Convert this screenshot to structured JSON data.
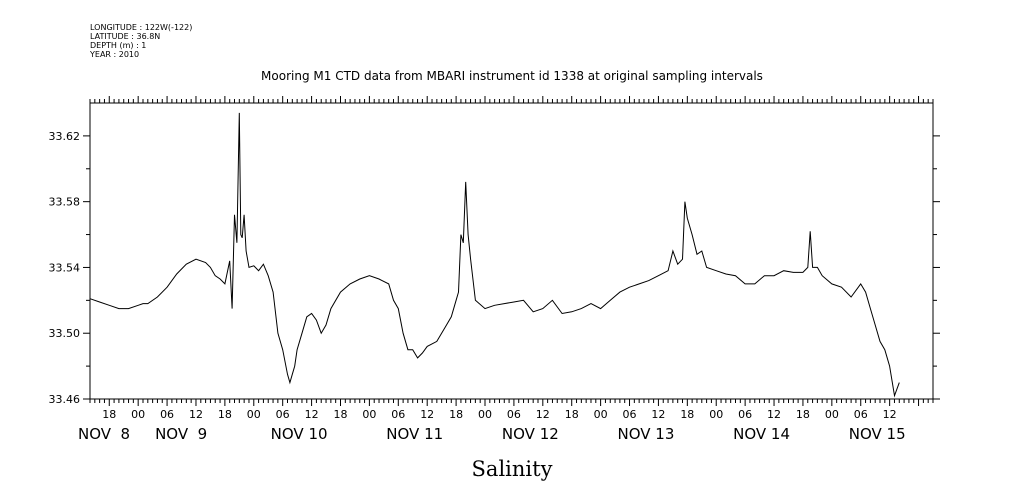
{
  "header": {
    "meta_lines": [
      "LONGITUDE : 122W(-122)",
      "LATITUDE : 36.8N",
      "DEPTH (m) : 1",
      "YEAR : 2010"
    ],
    "title": "Mooring M1 CTD data from MBARI instrument id 1338 at original sampling intervals"
  },
  "chart_data": {
    "type": "line",
    "title": "Mooring M1 CTD data from MBARI instrument id 1338 at original sampling intervals",
    "xlabel": "Salinity",
    "ylabel": "",
    "ylim": [
      33.46,
      33.64
    ],
    "yticks": [
      33.46,
      33.5,
      33.54,
      33.58,
      33.62
    ],
    "ytick_labels": [
      "33.46",
      "33.50",
      "33.54",
      "33.58",
      "33.62"
    ],
    "xlim_hours": [
      -10,
      165
    ],
    "hour_tick_labels": [
      {
        "h": -6,
        "label": "18"
      },
      {
        "h": 0,
        "label": "00"
      },
      {
        "h": 6,
        "label": "06"
      },
      {
        "h": 12,
        "label": "12"
      },
      {
        "h": 18,
        "label": "18"
      },
      {
        "h": 24,
        "label": "00"
      },
      {
        "h": 30,
        "label": "06"
      },
      {
        "h": 36,
        "label": "12"
      },
      {
        "h": 42,
        "label": "18"
      },
      {
        "h": 48,
        "label": "00"
      },
      {
        "h": 54,
        "label": "06"
      },
      {
        "h": 60,
        "label": "12"
      },
      {
        "h": 66,
        "label": "18"
      },
      {
        "h": 72,
        "label": "00"
      },
      {
        "h": 78,
        "label": "06"
      },
      {
        "h": 84,
        "label": "12"
      },
      {
        "h": 90,
        "label": "18"
      },
      {
        "h": 96,
        "label": "00"
      },
      {
        "h": 102,
        "label": "06"
      },
      {
        "h": 108,
        "label": "12"
      },
      {
        "h": 114,
        "label": "18"
      },
      {
        "h": 120,
        "label": "00"
      },
      {
        "h": 126,
        "label": "06"
      },
      {
        "h": 132,
        "label": "12"
      },
      {
        "h": 138,
        "label": "18"
      },
      {
        "h": 144,
        "label": "00"
      },
      {
        "h": 150,
        "label": "06"
      },
      {
        "h": 156,
        "label": "12"
      }
    ],
    "day_labels": [
      {
        "h": -10,
        "label": "NOV  8"
      },
      {
        "h": 6,
        "label": "NOV  9"
      },
      {
        "h": 30,
        "label": "NOV 10"
      },
      {
        "h": 54,
        "label": "NOV 11"
      },
      {
        "h": 78,
        "label": "NOV 12"
      },
      {
        "h": 102,
        "label": "NOV 13"
      },
      {
        "h": 126,
        "label": "NOV 14"
      },
      {
        "h": 150,
        "label": "NOV 15"
      }
    ],
    "series": [
      {
        "x": [
          -10,
          -8,
          -6,
          -4,
          -2,
          0,
          1,
          2,
          4,
          6,
          8,
          10,
          12,
          14,
          15,
          16,
          17,
          18,
          19,
          19.5,
          20,
          20.5,
          21,
          21.3,
          21.6,
          22,
          22.4,
          23,
          24,
          25,
          26,
          27,
          28,
          29,
          30,
          31,
          31.5,
          32,
          32.5,
          33,
          34,
          35,
          36,
          37,
          38,
          39,
          40,
          42,
          44,
          46,
          48,
          50,
          52,
          53,
          54,
          55,
          56,
          57,
          58,
          59,
          60,
          62,
          64,
          65,
          66,
          66.5,
          67,
          67.5,
          68,
          68.5,
          69,
          70,
          72,
          74,
          76,
          78,
          80,
          82,
          84,
          86,
          88,
          90,
          92,
          94,
          96,
          98,
          100,
          102,
          104,
          106,
          108,
          110,
          111,
          112,
          113,
          113.5,
          114,
          115,
          116,
          117,
          118,
          120,
          122,
          124,
          126,
          128,
          130,
          132,
          134,
          136,
          138,
          139,
          139.5,
          140,
          141,
          142,
          144,
          146,
          148,
          150,
          151,
          152,
          153,
          154,
          155,
          156,
          157,
          158
        ],
        "y": [
          33.521,
          33.519,
          33.517,
          33.515,
          33.515,
          33.517,
          33.518,
          33.518,
          33.522,
          33.528,
          33.536,
          33.542,
          33.545,
          33.543,
          33.54,
          33.535,
          33.533,
          33.53,
          33.544,
          33.515,
          33.572,
          33.555,
          33.634,
          33.56,
          33.558,
          33.572,
          33.55,
          33.54,
          33.541,
          33.538,
          33.542,
          33.535,
          33.525,
          33.5,
          33.49,
          33.475,
          33.47,
          33.475,
          33.48,
          33.49,
          33.5,
          33.51,
          33.512,
          33.508,
          33.5,
          33.505,
          33.515,
          33.525,
          33.53,
          33.533,
          33.535,
          33.533,
          33.53,
          33.52,
          33.515,
          33.5,
          33.49,
          33.49,
          33.485,
          33.488,
          33.492,
          33.495,
          33.505,
          33.51,
          33.52,
          33.525,
          33.56,
          33.555,
          33.592,
          33.56,
          33.545,
          33.52,
          33.515,
          33.517,
          33.518,
          33.519,
          33.52,
          33.513,
          33.515,
          33.52,
          33.512,
          33.513,
          33.515,
          33.518,
          33.515,
          33.52,
          33.525,
          33.528,
          33.53,
          33.532,
          33.535,
          33.538,
          33.55,
          33.542,
          33.545,
          33.58,
          33.57,
          33.56,
          33.548,
          33.55,
          33.54,
          33.538,
          33.536,
          33.535,
          33.53,
          33.53,
          33.535,
          33.535,
          33.538,
          33.537,
          33.537,
          33.54,
          33.562,
          33.54,
          33.54,
          33.535,
          33.53,
          33.528,
          33.522,
          33.53,
          33.525,
          33.515,
          33.505,
          33.495,
          33.49,
          33.48,
          33.462,
          33.47
        ]
      }
    ]
  }
}
